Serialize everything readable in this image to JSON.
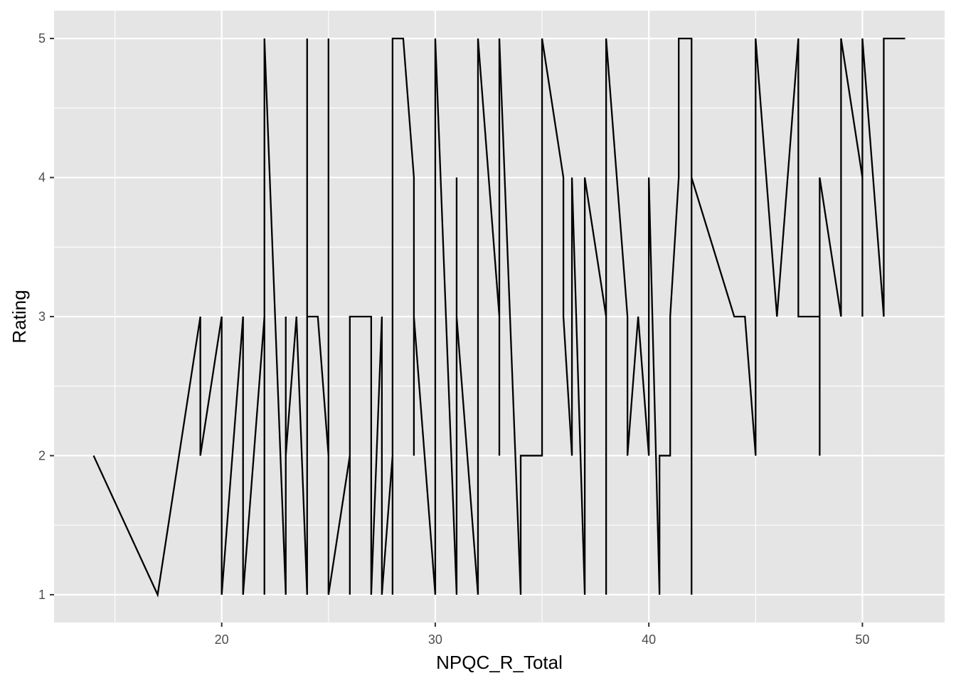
{
  "chart_data": {
    "type": "line",
    "title": "",
    "xlabel": "NPQC_R_Total",
    "ylabel": "Rating",
    "xlim": [
      12.15,
      53.85
    ],
    "ylim": [
      0.8,
      5.2
    ],
    "x_ticks": [
      20,
      30,
      40,
      50
    ],
    "x_tick_labels": [
      "20",
      "30",
      "40",
      "50"
    ],
    "y_ticks": [
      1,
      2,
      3,
      4,
      5
    ],
    "y_tick_labels": [
      "1",
      "2",
      "3",
      "4",
      "5"
    ],
    "grid": true,
    "legend": "none",
    "colors": {
      "panel": "#e5e5e5",
      "grid": "#ffffff",
      "line": "#000000",
      "tick_text": "#4d4d4d"
    },
    "series": [
      {
        "x": [
          14,
          17,
          19,
          19,
          20,
          20,
          21,
          21,
          22,
          22,
          22,
          23,
          23,
          23,
          23.5,
          24,
          24,
          24,
          24.5,
          25,
          25,
          25,
          26,
          26,
          26,
          27,
          27,
          27.5,
          27.5,
          28,
          28,
          28,
          28.5,
          29,
          29,
          29,
          30,
          30,
          31,
          31,
          31,
          31,
          32,
          32,
          33,
          33,
          33,
          34,
          34,
          35,
          35,
          36,
          36,
          36.4,
          36.4,
          37,
          37,
          37,
          38,
          38,
          38,
          39,
          39,
          39.5,
          40,
          40,
          40.5,
          40.5,
          41,
          41,
          41.4,
          41.4,
          42,
          42,
          42,
          44,
          44.5,
          45,
          45,
          46,
          47,
          47,
          48,
          48,
          48,
          49,
          49,
          50,
          50,
          50,
          51,
          51,
          52
        ],
        "y": [
          2,
          1,
          3,
          2,
          3,
          1,
          3,
          1,
          3,
          1,
          5,
          1,
          3,
          2,
          3,
          1,
          5,
          3,
          3,
          2,
          5,
          1,
          2,
          1,
          3,
          3,
          1,
          3,
          1,
          2,
          1,
          5,
          5,
          4,
          2,
          3,
          1,
          5,
          1,
          4,
          2,
          3,
          1,
          5,
          3,
          2,
          5,
          1,
          2,
          2,
          5,
          4,
          3,
          2,
          4,
          1,
          3,
          4,
          3,
          1,
          5,
          3,
          2,
          3,
          2,
          4,
          1,
          2,
          2,
          3,
          4,
          5,
          5,
          1,
          4,
          3,
          3,
          2,
          5,
          3,
          5,
          3,
          3,
          2,
          4,
          3,
          5,
          4,
          3,
          5,
          3,
          5,
          5
        ]
      }
    ]
  }
}
